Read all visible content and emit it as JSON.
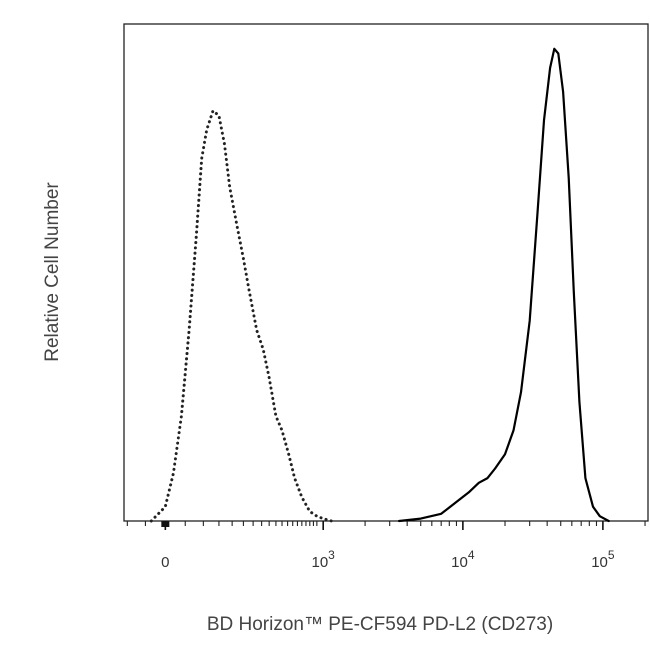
{
  "chart_data": {
    "type": "line",
    "title": "",
    "xlabel": "BD Horizon™ PE-CF594 PD-L2 (CD273)",
    "ylabel": "Relative Cell Number",
    "x_scale": "biexponential",
    "xlim": [
      -110,
      210000
    ],
    "ylim": [
      0,
      100
    ],
    "grid": false,
    "legend": "none",
    "x_ticks": [
      {
        "value": 0,
        "base": "0",
        "exp": ""
      },
      {
        "value": 1000,
        "base": "10",
        "exp": "3"
      },
      {
        "value": 10000,
        "base": "10",
        "exp": "4"
      },
      {
        "value": 100000,
        "base": "10",
        "exp": "5"
      }
    ],
    "series": [
      {
        "style": "dotted",
        "color": "#222222",
        "x": [
          -35,
          0,
          20,
          40,
          60,
          80,
          95,
          110,
          130,
          150,
          170,
          190,
          220,
          250,
          280,
          320,
          360,
          400,
          450,
          500,
          560,
          620,
          700,
          800,
          900,
          1000,
          1150
        ],
        "y": [
          0,
          3,
          10,
          22,
          40,
          60,
          76,
          82,
          86,
          85,
          79,
          70,
          62,
          55,
          48,
          40,
          36,
          30,
          22,
          19,
          14,
          9,
          5,
          2,
          1,
          0.5,
          0
        ]
      },
      {
        "style": "solid",
        "color": "#000000",
        "x": [
          3500,
          5000,
          7000,
          9000,
          11000,
          13000,
          15000,
          17000,
          20000,
          23000,
          26000,
          30000,
          34000,
          38000,
          42000,
          45000,
          48000,
          52000,
          57000,
          62000,
          68000,
          75000,
          85000,
          95000,
          110000
        ],
        "y": [
          0,
          0.5,
          1.5,
          4,
          6,
          8,
          9,
          11,
          14,
          19,
          27,
          42,
          64,
          84,
          95,
          99,
          98,
          90,
          72,
          48,
          25,
          9,
          3,
          1,
          0
        ]
      }
    ]
  }
}
